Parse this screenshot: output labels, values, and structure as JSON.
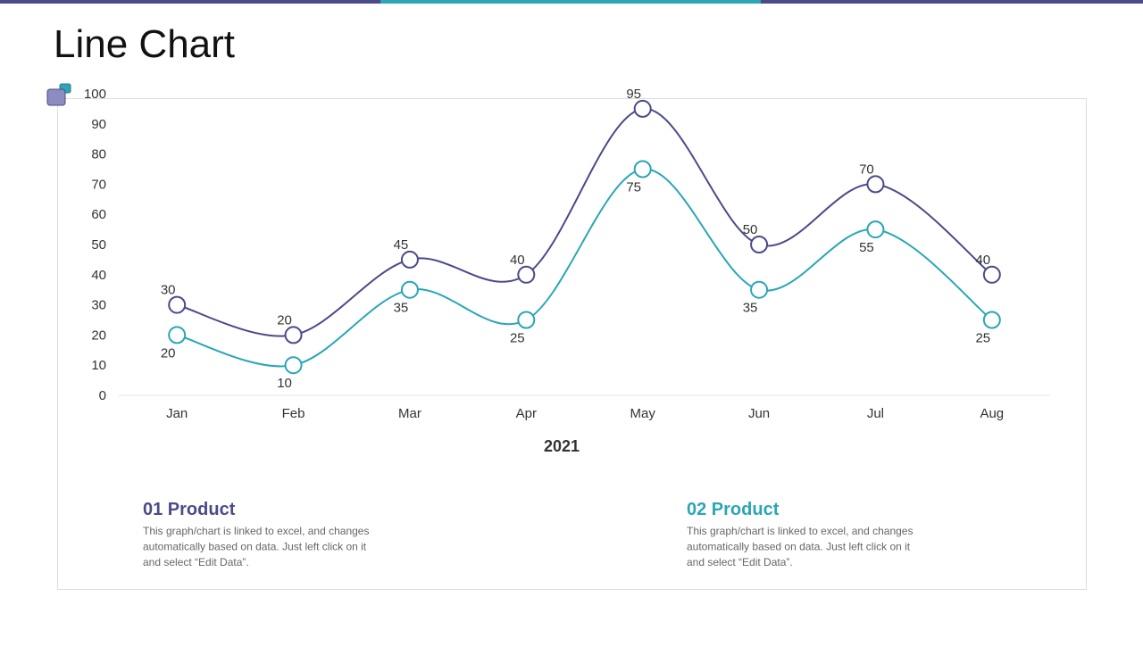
{
  "title": "Line Chart",
  "chart_data": {
    "type": "line",
    "xlabel": "2021",
    "categories": [
      "Jan",
      "Feb",
      "Mar",
      "Apr",
      "May",
      "Jun",
      "Jul",
      "Aug"
    ],
    "series": [
      {
        "name": "01 Product",
        "color": "#4b4a8a",
        "values": [
          30,
          20,
          45,
          40,
          95,
          50,
          70,
          40
        ]
      },
      {
        "name": "02 Product",
        "color": "#2aa6b5",
        "values": [
          20,
          10,
          35,
          25,
          75,
          35,
          55,
          25
        ]
      }
    ],
    "ylim": [
      0,
      100
    ],
    "yticks": [
      0,
      10,
      20,
      30,
      40,
      50,
      60,
      70,
      80,
      90,
      100
    ]
  },
  "notes": [
    [
      "This graph/chart is linked to excel, and changes",
      "automatically based on data. Just left click on it",
      "and select “Edit Data”."
    ],
    [
      "This graph/chart is linked to excel, and changes",
      "automatically based on data. Just left click on it",
      "and select “Edit Data”."
    ]
  ]
}
